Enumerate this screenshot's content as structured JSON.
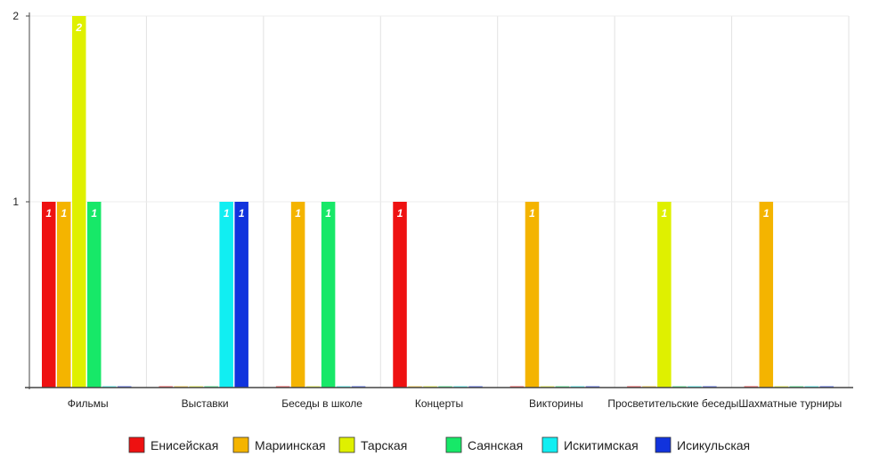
{
  "chart_data": {
    "type": "bar",
    "title": "",
    "xlabel": "",
    "ylabel": "",
    "ylim": [
      0,
      2
    ],
    "yticks": [
      0,
      1,
      2
    ],
    "grid": true,
    "legend_position": "bottom",
    "categories": [
      "Фильмы",
      "Выставки",
      "Беседы в школе",
      "Концерты",
      "Викторины",
      "Просветительские беседы",
      "Шахматные турниры"
    ],
    "series": [
      {
        "name": "Енисейская",
        "color": "#ee1111",
        "values": [
          1,
          0,
          0,
          1,
          0,
          0,
          0
        ]
      },
      {
        "name": "Мариинская",
        "color": "#f4b400",
        "values": [
          1,
          0,
          1,
          0,
          1,
          0,
          1
        ]
      },
      {
        "name": "Тарская",
        "color": "#dff000",
        "values": [
          2,
          0,
          0,
          0,
          0,
          1,
          0
        ]
      },
      {
        "name": "Саянская",
        "color": "#17e868",
        "values": [
          1,
          0,
          1,
          0,
          0,
          0,
          0
        ]
      },
      {
        "name": "Искитимская",
        "color": "#11eef2",
        "values": [
          0,
          1,
          0,
          0,
          0,
          0,
          0
        ]
      },
      {
        "name": "Исикульская",
        "color": "#1133dd",
        "values": [
          0,
          1,
          0,
          0,
          0,
          0,
          0
        ]
      }
    ]
  }
}
